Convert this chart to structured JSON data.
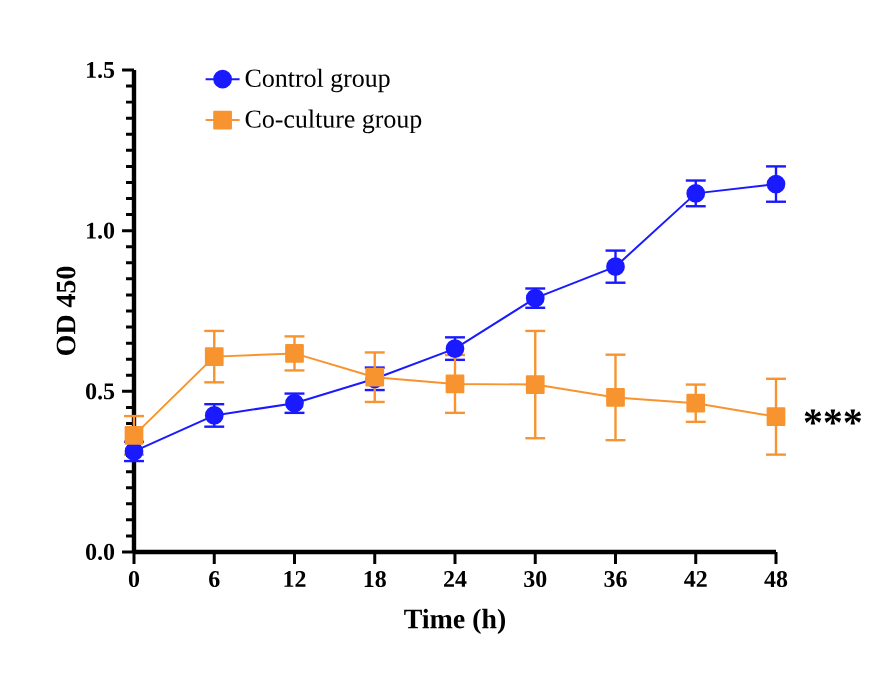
{
  "chart_data": {
    "type": "line",
    "xlabel": "Time  (h)",
    "ylabel": "OD 450",
    "x": [
      0,
      6,
      12,
      18,
      24,
      30,
      36,
      42,
      48
    ],
    "series": [
      {
        "name": "Control group",
        "color": "#1a1aff",
        "marker": "circle",
        "values": [
          0.313,
          0.425,
          0.463,
          0.539,
          0.633,
          0.79,
          0.888,
          1.116,
          1.145
        ],
        "errors": [
          0.03,
          0.035,
          0.03,
          0.035,
          0.035,
          0.03,
          0.05,
          0.04,
          0.055
        ]
      },
      {
        "name": "Co-culture group",
        "color": "#f7942f",
        "marker": "square",
        "values": [
          0.363,
          0.608,
          0.618,
          0.544,
          0.523,
          0.521,
          0.481,
          0.463,
          0.421
        ],
        "errors": [
          0.06,
          0.08,
          0.053,
          0.077,
          0.09,
          0.167,
          0.133,
          0.058,
          0.118
        ]
      }
    ],
    "xlim": [
      0,
      48
    ],
    "xticks": [
      0,
      6,
      12,
      18,
      24,
      30,
      36,
      42,
      48
    ],
    "ylim": [
      0,
      1.5
    ],
    "yticks": [
      {
        "value": 0,
        "label": "0.0"
      },
      {
        "value": 0.5,
        "label": "0.5"
      },
      {
        "value": 1,
        "label": "1.0"
      },
      {
        "value": 1.5,
        "label": "1.5"
      }
    ],
    "annotations": [
      "***"
    ],
    "legend": "top left",
    "line_style": "solid"
  }
}
